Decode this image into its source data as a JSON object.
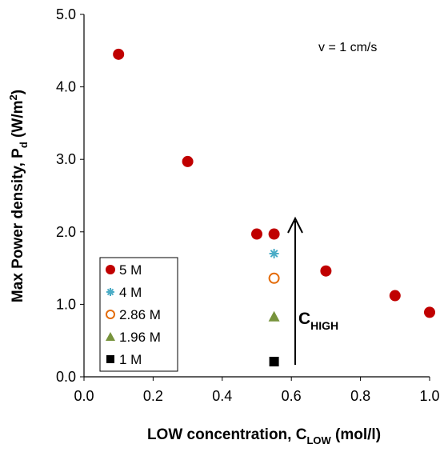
{
  "chart_data": {
    "type": "scatter",
    "y_label": [
      "Max Power density, P",
      "d",
      " (W/m",
      "2",
      ")"
    ],
    "x_label": [
      "LOW concentration, C",
      "LOW",
      " (mol/l)"
    ],
    "annotation": "v = 1 cm/s",
    "arrow_label": [
      "C",
      "HIGH"
    ],
    "xlim": [
      0,
      1
    ],
    "ylim": [
      0,
      5
    ],
    "xticks": [
      {
        "value": 0,
        "label": "0.0"
      },
      {
        "value": 0.2,
        "label": "0.2"
      },
      {
        "value": 0.4,
        "label": "0.4"
      },
      {
        "value": 0.6,
        "label": "0.6"
      },
      {
        "value": 0.8,
        "label": "0.8"
      },
      {
        "value": 1,
        "label": "1.0"
      }
    ],
    "yticks": [
      {
        "value": 0,
        "label": "0.0"
      },
      {
        "value": 1,
        "label": "1.0"
      },
      {
        "value": 2,
        "label": "2.0"
      },
      {
        "value": 3,
        "label": "3.0"
      },
      {
        "value": 4,
        "label": "4.0"
      },
      {
        "value": 5,
        "label": "5.0"
      }
    ],
    "grid": false,
    "legend": "lower left",
    "series": [
      {
        "name": "5 M",
        "color": "#c00000",
        "marker": "circle",
        "x": [
          0.1,
          0.3,
          0.5,
          0.55,
          0.7,
          0.9,
          1.0
        ],
        "values": [
          4.45,
          2.97,
          1.97,
          1.97,
          1.46,
          1.12,
          0.89
        ]
      },
      {
        "name": "4 M",
        "color": "#4bacc6",
        "marker": "asterisk",
        "x": [
          0.55
        ],
        "values": [
          1.7
        ]
      },
      {
        "name": "2.86 M",
        "color": "#e46c0a",
        "marker": "open-circle",
        "x": [
          0.55
        ],
        "values": [
          1.36
        ]
      },
      {
        "name": "1.96 M",
        "color": "#77933c",
        "marker": "triangle",
        "x": [
          0.55
        ],
        "values": [
          0.83
        ]
      },
      {
        "name": "1 M",
        "color": "#000000",
        "marker": "square",
        "x": [
          0.55
        ],
        "values": [
          0.21
        ]
      }
    ]
  }
}
